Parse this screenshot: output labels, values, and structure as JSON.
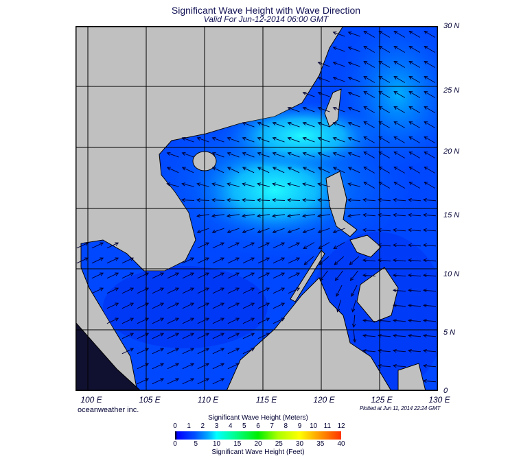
{
  "chart_data": {
    "type": "heatmap",
    "title": "Significant Wave Height with Wave Direction",
    "subtitle": "Valid For Jun-12-2014 06:00 GMT",
    "x_ticks": [
      "100 E",
      "105 E",
      "110 E",
      "115 E",
      "120 E",
      "125 E",
      "130 E"
    ],
    "y_ticks": [
      "30 N",
      "25 N",
      "20 N",
      "15 N",
      "10 N",
      "5 N",
      "0"
    ],
    "xlim": [
      99,
      130
    ],
    "ylim": [
      0,
      30
    ],
    "grid": true,
    "colorbar": {
      "title_top": "Significant Wave Height (Meters)",
      "ticks_top": [
        "0",
        "1",
        "2",
        "3",
        "4",
        "5",
        "6",
        "7",
        "8",
        "9",
        "10",
        "11",
        "12"
      ],
      "title_bottom": "Significant Wave Height (Feet)",
      "ticks_bottom": [
        "0",
        "5",
        "10",
        "15",
        "20",
        "25",
        "30",
        "35",
        "40"
      ]
    },
    "colors": {
      "land": "#c0c0c0",
      "sea_low": "#0040ff",
      "sea_mid": "#00a0ff",
      "sea_high": "#20f0ff"
    }
  },
  "credit": "oceanweather inc.",
  "plotted": "Plotted at Jun 11, 2014 22:24 GMT"
}
